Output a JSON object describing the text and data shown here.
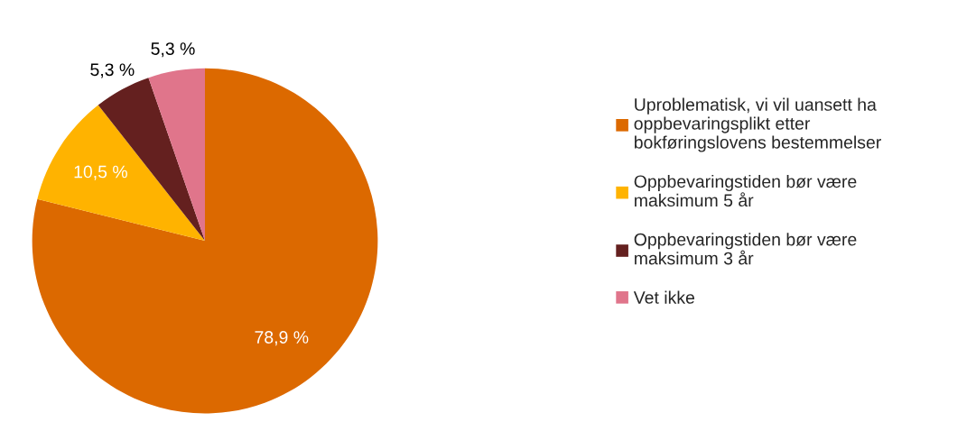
{
  "chart_data": {
    "type": "pie",
    "categories": [
      "Uproblematisk, vi vil uansett ha oppbevaringsplikt etter bokføringslovens bestemmelser",
      "Oppbevaringstiden bør være maksimum 5 år",
      "Oppbevaringstiden bør være maksimum 3 år",
      "Vet ikke"
    ],
    "values": [
      78.9,
      10.5,
      5.3,
      5.3
    ],
    "value_labels": [
      "78,9 %",
      "10,5 %",
      "5,3 %",
      "5,3 %"
    ],
    "colors": [
      "#dc6900",
      "#ffb300",
      "#64201f",
      "#e0758b"
    ],
    "legend": "right"
  }
}
